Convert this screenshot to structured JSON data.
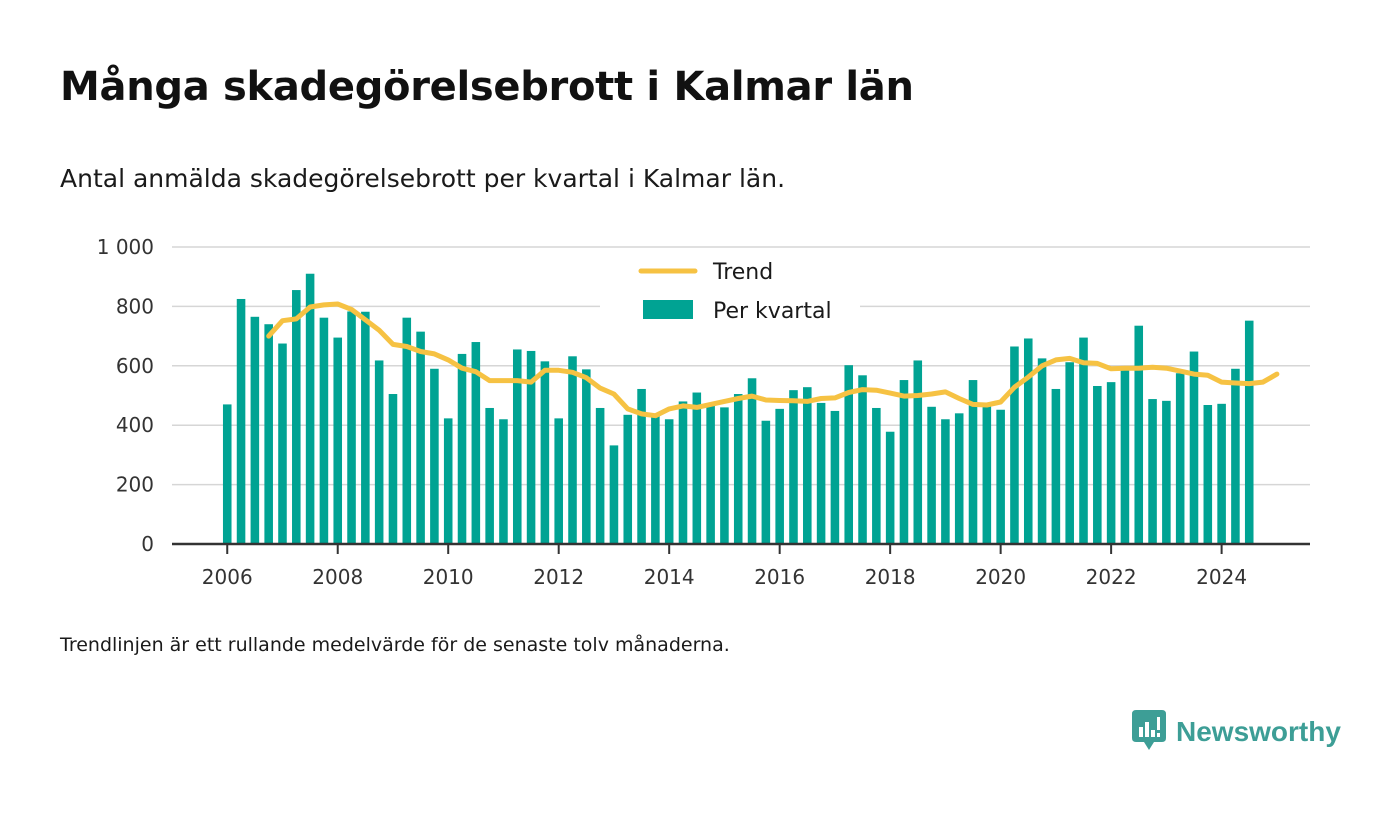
{
  "title": "Många skadegörelsebrott i Kalmar län",
  "subtitle": "Antal anmälda skadegörelsebrott per kvartal i Kalmar län.",
  "footnote": "Trendlinjen är ett rullande medelvärde för de senaste tolv månaderna.",
  "brand": {
    "name": "Newsworthy",
    "icon": "newsworthy-logo-icon"
  },
  "colors": {
    "bar": "#00a393",
    "trend": "#f6c243",
    "grid": "#d6d6d6",
    "axis": "#333333"
  },
  "chart_data": {
    "type": "bar",
    "ylim": [
      0,
      1000
    ],
    "yticks": [
      0,
      200,
      400,
      600,
      800,
      1000
    ],
    "ytick_labels": [
      "0",
      "200",
      "400",
      "600",
      "800",
      "1 000"
    ],
    "xlim": [
      2005.0,
      2025.6
    ],
    "xticks": [
      2006,
      2008,
      2010,
      2012,
      2014,
      2016,
      2018,
      2020,
      2022,
      2024
    ],
    "xtick_labels": [
      "2006",
      "2008",
      "2010",
      "2012",
      "2014",
      "2016",
      "2018",
      "2020",
      "2022",
      "2024"
    ],
    "grid": true,
    "legend": {
      "placement": "top-center",
      "entries": [
        {
          "label": "Trend",
          "kind": "line"
        },
        {
          "label": "Per kvartal",
          "kind": "bar"
        }
      ]
    },
    "series": [
      {
        "name": "Per kvartal",
        "kind": "bar",
        "start_year": 2006,
        "start_quarter": 1,
        "values": [
          470,
          825,
          765,
          740,
          675,
          855,
          910,
          762,
          695,
          783,
          782,
          618,
          505,
          762,
          715,
          590,
          423,
          640,
          680,
          458,
          420,
          655,
          650,
          615,
          423,
          632,
          588,
          458,
          332,
          435,
          522,
          435,
          420,
          480,
          510,
          468,
          460,
          505,
          558,
          415,
          455,
          518,
          528,
          475,
          448,
          602,
          568,
          458,
          378,
          552,
          618,
          462,
          420,
          440,
          552,
          468,
          452,
          665,
          692,
          625,
          522,
          612,
          695,
          532,
          545,
          588,
          735,
          488,
          482,
          575,
          648,
          468,
          472,
          590,
          752
        ]
      },
      {
        "name": "Trend",
        "kind": "line",
        "start_year": 2006,
        "start_quarter": 4,
        "values": [
          700,
          752,
          758,
          798,
          805,
          808,
          790,
          755,
          720,
          672,
          665,
          648,
          640,
          620,
          592,
          580,
          550,
          550,
          550,
          545,
          585,
          585,
          578,
          560,
          525,
          505,
          455,
          438,
          432,
          455,
          465,
          460,
          470,
          480,
          490,
          498,
          485,
          483,
          482,
          480,
          490,
          492,
          510,
          520,
          518,
          508,
          498,
          500,
          505,
          512,
          490,
          470,
          468,
          478,
          528,
          562,
          600,
          620,
          625,
          610,
          608,
          590,
          592,
          592,
          595,
          592,
          582,
          572,
          568,
          545,
          542,
          540,
          545,
          572
        ]
      }
    ]
  }
}
